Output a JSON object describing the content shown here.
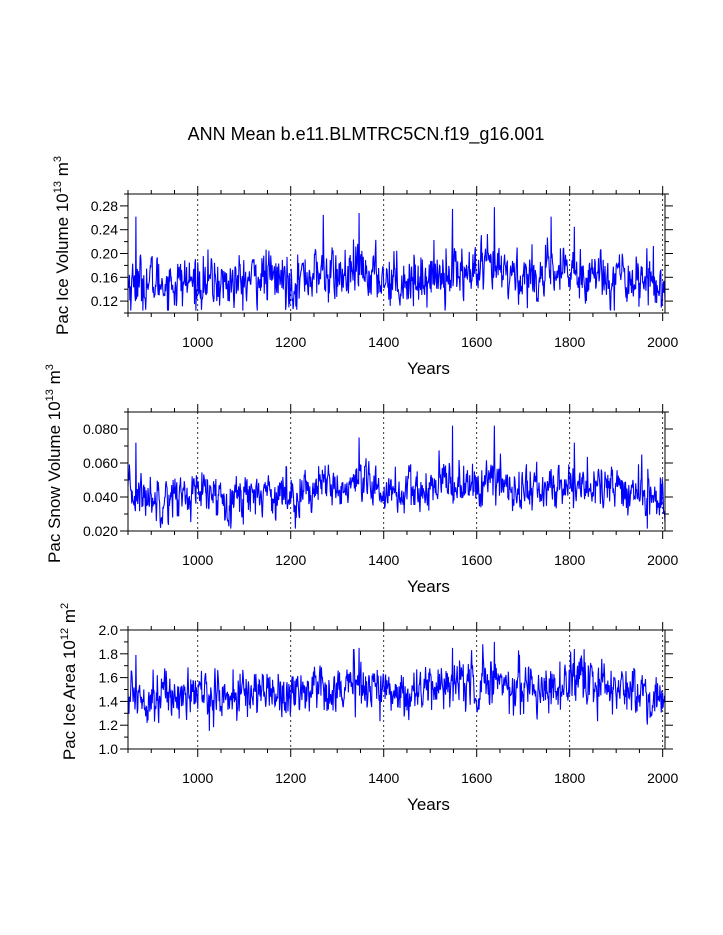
{
  "figure": {
    "title": "ANN Mean b.e11.BLMTRC5CN.f19_g16.001"
  },
  "chart_data": [
    {
      "id": "ice_volume",
      "type": "line",
      "ylabel": {
        "main": "Pac Ice Volume 10",
        "exp": "13",
        "unit": " m",
        "unit_exp": "3"
      },
      "xlabel": "Years",
      "xlim": [
        850,
        2005
      ],
      "ylim": [
        0.1,
        0.3
      ],
      "xticks": [
        1000,
        1200,
        1400,
        1600,
        1800,
        2000
      ],
      "xtick_labels": [
        "1000",
        "1200",
        "1400",
        "1600",
        "1800",
        "2000"
      ],
      "yticks": [
        0.12,
        0.16,
        0.2,
        0.24,
        0.28
      ],
      "ytick_labels": [
        "0.12",
        "0.16",
        "0.20",
        "0.24",
        "0.28"
      ],
      "grid": "vertical dashed at major x ticks",
      "series": [
        {
          "name": "Pac Ice Volume",
          "color": "#0000ff",
          "x_start": 850,
          "x_end": 2005,
          "x": [
            850,
            875,
            900,
            925,
            950,
            975,
            1000,
            1025,
            1050,
            1075,
            1100,
            1125,
            1150,
            1175,
            1200,
            1225,
            1250,
            1275,
            1300,
            1325,
            1350,
            1375,
            1400,
            1425,
            1450,
            1475,
            1500,
            1525,
            1550,
            1575,
            1600,
            1625,
            1650,
            1675,
            1700,
            1725,
            1750,
            1775,
            1800,
            1825,
            1850,
            1875,
            1900,
            1925,
            1950,
            1975,
            2005
          ],
          "mean": [
            0.15,
            0.15,
            0.152,
            0.152,
            0.15,
            0.152,
            0.153,
            0.152,
            0.15,
            0.15,
            0.15,
            0.162,
            0.16,
            0.158,
            0.152,
            0.16,
            0.165,
            0.168,
            0.16,
            0.163,
            0.168,
            0.165,
            0.16,
            0.158,
            0.155,
            0.158,
            0.16,
            0.168,
            0.17,
            0.168,
            0.165,
            0.175,
            0.168,
            0.165,
            0.16,
            0.163,
            0.16,
            0.165,
            0.17,
            0.168,
            0.165,
            0.165,
            0.162,
            0.16,
            0.158,
            0.155,
            0.14
          ],
          "std": 0.022,
          "peaks": [
            {
              "x": 867,
              "y": 0.262
            },
            {
              "x": 1270,
              "y": 0.265
            },
            {
              "x": 1347,
              "y": 0.268
            },
            {
              "x": 1548,
              "y": 0.275
            },
            {
              "x": 1638,
              "y": 0.278
            },
            {
              "x": 1760,
              "y": 0.262
            },
            {
              "x": 1810,
              "y": 0.245
            }
          ]
        }
      ]
    },
    {
      "id": "snow_volume",
      "type": "line",
      "ylabel": {
        "main": "Pac Snow Volume 10",
        "exp": "13",
        "unit": " m",
        "unit_exp": "3"
      },
      "xlabel": "Years",
      "xlim": [
        850,
        2005
      ],
      "ylim": [
        0.02,
        0.09
      ],
      "xticks": [
        1000,
        1200,
        1400,
        1600,
        1800,
        2000
      ],
      "xtick_labels": [
        "1000",
        "1200",
        "1400",
        "1600",
        "1800",
        "2000"
      ],
      "yticks": [
        0.02,
        0.04,
        0.06,
        0.08
      ],
      "ytick_labels": [
        "0.020",
        "0.040",
        "0.060",
        "0.080"
      ],
      "grid": "vertical dashed at major x ticks",
      "series": [
        {
          "name": "Pac Snow Volume",
          "color": "#0000ff",
          "x_start": 850,
          "x_end": 2005,
          "x": [
            850,
            875,
            900,
            925,
            950,
            975,
            1000,
            1025,
            1050,
            1075,
            1100,
            1125,
            1150,
            1175,
            1200,
            1225,
            1250,
            1275,
            1300,
            1325,
            1350,
            1375,
            1400,
            1425,
            1450,
            1475,
            1500,
            1525,
            1550,
            1575,
            1600,
            1625,
            1650,
            1675,
            1700,
            1725,
            1750,
            1775,
            1800,
            1825,
            1850,
            1875,
            1900,
            1925,
            1950,
            1975,
            2005
          ],
          "mean": [
            0.042,
            0.041,
            0.04,
            0.04,
            0.041,
            0.041,
            0.042,
            0.041,
            0.04,
            0.04,
            0.041,
            0.043,
            0.043,
            0.042,
            0.041,
            0.043,
            0.045,
            0.046,
            0.044,
            0.045,
            0.046,
            0.045,
            0.044,
            0.043,
            0.042,
            0.043,
            0.044,
            0.047,
            0.048,
            0.047,
            0.046,
            0.049,
            0.048,
            0.046,
            0.044,
            0.045,
            0.044,
            0.045,
            0.048,
            0.047,
            0.046,
            0.045,
            0.044,
            0.043,
            0.042,
            0.041,
            0.036
          ],
          "std": 0.0065,
          "peaks": [
            {
              "x": 867,
              "y": 0.072
            },
            {
              "x": 1347,
              "y": 0.075
            },
            {
              "x": 1548,
              "y": 0.082
            },
            {
              "x": 1638,
              "y": 0.082
            },
            {
              "x": 1810,
              "y": 0.072
            },
            {
              "x": 1955,
              "y": 0.065
            }
          ]
        }
      ]
    },
    {
      "id": "ice_area",
      "type": "line",
      "ylabel": {
        "main": "Pac Ice Area 10",
        "exp": "12",
        "unit": " m",
        "unit_exp": "2"
      },
      "xlabel": "Years",
      "xlim": [
        850,
        2005
      ],
      "ylim": [
        1.0,
        2.0
      ],
      "xticks": [
        1000,
        1200,
        1400,
        1600,
        1800,
        2000
      ],
      "xtick_labels": [
        "1000",
        "1200",
        "1400",
        "1600",
        "1800",
        "2000"
      ],
      "yticks": [
        1.0,
        1.2,
        1.4,
        1.6,
        1.8,
        2.0
      ],
      "ytick_labels": [
        "1.0",
        "1.2",
        "1.4",
        "1.6",
        "1.8",
        "2.0"
      ],
      "grid": "vertical dashed at major x ticks",
      "series": [
        {
          "name": "Pac Ice Area",
          "color": "#0000ff",
          "x_start": 850,
          "x_end": 2005,
          "x": [
            850,
            875,
            900,
            925,
            950,
            975,
            1000,
            1025,
            1050,
            1075,
            1100,
            1125,
            1150,
            1175,
            1200,
            1225,
            1250,
            1275,
            1300,
            1325,
            1350,
            1375,
            1400,
            1425,
            1450,
            1475,
            1500,
            1525,
            1550,
            1575,
            1600,
            1625,
            1650,
            1675,
            1700,
            1725,
            1750,
            1775,
            1800,
            1825,
            1850,
            1875,
            1900,
            1925,
            1950,
            1975,
            2005
          ],
          "mean": [
            1.45,
            1.45,
            1.45,
            1.46,
            1.45,
            1.46,
            1.47,
            1.46,
            1.44,
            1.44,
            1.45,
            1.5,
            1.49,
            1.48,
            1.45,
            1.49,
            1.52,
            1.54,
            1.5,
            1.52,
            1.55,
            1.53,
            1.5,
            1.49,
            1.47,
            1.49,
            1.5,
            1.55,
            1.56,
            1.55,
            1.53,
            1.59,
            1.56,
            1.54,
            1.51,
            1.53,
            1.51,
            1.53,
            1.57,
            1.55,
            1.54,
            1.53,
            1.51,
            1.49,
            1.47,
            1.45,
            1.35
          ],
          "std": 0.1,
          "peaks": [
            {
              "x": 867,
              "y": 1.79
            },
            {
              "x": 1347,
              "y": 1.85
            },
            {
              "x": 1548,
              "y": 1.85
            },
            {
              "x": 1638,
              "y": 1.9
            },
            {
              "x": 1810,
              "y": 1.84
            }
          ]
        }
      ]
    }
  ]
}
